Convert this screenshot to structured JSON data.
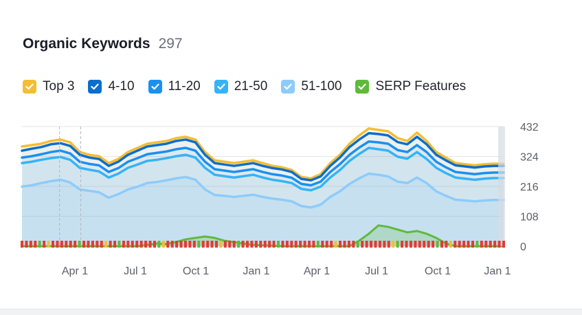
{
  "widget": {
    "title": "Organic Keywords",
    "count": "297"
  },
  "legend": [
    {
      "label": "Top 3",
      "color": "#f5bd32",
      "checked": true
    },
    {
      "label": "4-10",
      "color": "#0a6ecb",
      "checked": true
    },
    {
      "label": "11-20",
      "color": "#1a90f0",
      "checked": true
    },
    {
      "label": "21-50",
      "color": "#35b3f7",
      "checked": true
    },
    {
      "label": "51-100",
      "color": "#8ecbfa",
      "checked": true
    },
    {
      "label": "SERP Features",
      "color": "#5fba3a",
      "checked": true
    }
  ],
  "chart_data": {
    "type": "area",
    "x_tick_labels": [
      "Apr 1",
      "Jul 1",
      "Oct 1",
      "Jan 1",
      "Apr 1",
      "Jul 1",
      "Oct 1",
      "Jan 1"
    ],
    "y_tick_labels": [
      "0",
      "108",
      "216",
      "324",
      "432"
    ],
    "ylim": [
      0,
      432
    ],
    "x_index_range": [
      0,
      100
    ],
    "stacked": false,
    "x": [
      0,
      2,
      4,
      6,
      8,
      10,
      12,
      14,
      16,
      18,
      20,
      22,
      24,
      26,
      28,
      30,
      32,
      34,
      36,
      38,
      40,
      42,
      44,
      46,
      48,
      50,
      52,
      54,
      56,
      58,
      60,
      62,
      64,
      66,
      68,
      70,
      72,
      74,
      76,
      78,
      80,
      82,
      84,
      86,
      88,
      90,
      92,
      94,
      96,
      98,
      100
    ],
    "series": [
      {
        "name": "Top 3",
        "color": "#f5bd32",
        "values": [
          360,
          365,
          370,
          380,
          385,
          375,
          340,
          330,
          325,
          300,
          315,
          340,
          355,
          370,
          375,
          380,
          390,
          395,
          385,
          340,
          310,
          305,
          300,
          305,
          310,
          300,
          290,
          285,
          275,
          250,
          245,
          260,
          300,
          330,
          370,
          400,
          425,
          420,
          415,
          390,
          380,
          410,
          380,
          340,
          320,
          300,
          296,
          292,
          296,
          298,
          298
        ]
      },
      {
        "name": "4-10",
        "color": "#0a6ecb",
        "values": [
          345,
          352,
          358,
          368,
          372,
          362,
          330,
          320,
          315,
          290,
          305,
          330,
          345,
          360,
          365,
          370,
          380,
          385,
          375,
          330,
          300,
          295,
          290,
          295,
          300,
          290,
          282,
          277,
          268,
          243,
          238,
          252,
          290,
          320,
          358,
          385,
          408,
          405,
          400,
          376,
          368,
          395,
          368,
          330,
          310,
          292,
          288,
          284,
          288,
          290,
          290
        ]
      },
      {
        "name": "11-20",
        "color": "#1a90f0",
        "values": [
          320,
          325,
          332,
          340,
          345,
          335,
          305,
          297,
          292,
          268,
          282,
          305,
          318,
          332,
          337,
          342,
          350,
          355,
          345,
          305,
          278,
          273,
          268,
          273,
          278,
          268,
          260,
          255,
          247,
          225,
          220,
          233,
          268,
          296,
          330,
          356,
          378,
          375,
          370,
          347,
          340,
          365,
          340,
          305,
          285,
          268,
          264,
          260,
          264,
          266,
          266
        ]
      },
      {
        "name": "21-50",
        "color": "#35b3f7",
        "values": [
          300,
          305,
          312,
          318,
          322,
          312,
          283,
          276,
          270,
          248,
          262,
          283,
          295,
          308,
          312,
          318,
          325,
          330,
          320,
          283,
          258,
          253,
          248,
          253,
          258,
          248,
          240,
          235,
          228,
          207,
          202,
          215,
          248,
          275,
          308,
          333,
          355,
          350,
          345,
          323,
          316,
          340,
          315,
          283,
          264,
          248,
          244,
          240,
          244,
          246,
          246
        ]
      },
      {
        "name": "51-100",
        "color": "#8ecbfa",
        "values": [
          215,
          220,
          228,
          235,
          240,
          230,
          205,
          200,
          195,
          175,
          188,
          205,
          215,
          228,
          232,
          238,
          245,
          250,
          240,
          205,
          185,
          182,
          178,
          182,
          186,
          178,
          172,
          168,
          162,
          145,
          140,
          150,
          178,
          198,
          225,
          245,
          262,
          258,
          252,
          233,
          228,
          248,
          228,
          198,
          182,
          168,
          165,
          162,
          165,
          167,
          167
        ]
      },
      {
        "name": "SERP Features",
        "color": "#5fba3a",
        "values": [
          0,
          0,
          0,
          0,
          0,
          0,
          0,
          0,
          0,
          0,
          0,
          0,
          0,
          5,
          10,
          8,
          15,
          25,
          30,
          35,
          30,
          20,
          15,
          10,
          5,
          3,
          2,
          0,
          0,
          0,
          0,
          0,
          0,
          0,
          0,
          20,
          45,
          75,
          70,
          60,
          50,
          55,
          45,
          30,
          10,
          0,
          0,
          0,
          0,
          0,
          0
        ]
      }
    ],
    "grid": true,
    "legend_position": "top"
  }
}
